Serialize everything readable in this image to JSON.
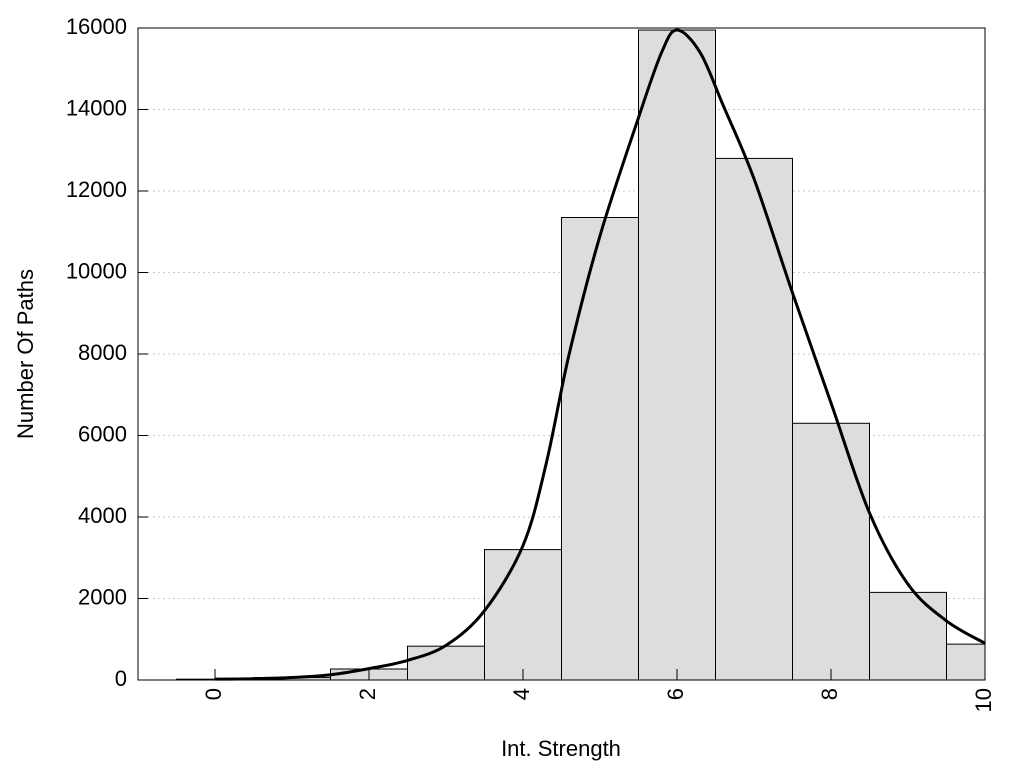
{
  "chart_data": {
    "type": "bar",
    "title": "",
    "xlabel": "Int. Strength",
    "ylabel": "Number Of Paths",
    "xlim": [
      -1,
      10
    ],
    "ylim": [
      0,
      16000
    ],
    "x_ticks": [
      "0",
      "2",
      "4",
      "6",
      "8",
      "10"
    ],
    "y_ticks": [
      "0",
      "2000",
      "4000",
      "6000",
      "8000",
      "10000",
      "12000",
      "14000",
      "16000"
    ],
    "grid": "horizontal dotted",
    "legend": "none",
    "bars": {
      "centers": [
        0,
        1,
        2,
        3,
        4,
        5,
        6,
        7,
        8,
        9,
        10
      ],
      "width": 1,
      "values": [
        20,
        60,
        270,
        830,
        3200,
        11350,
        15950,
        12800,
        6300,
        2150,
        880
      ],
      "fill": "#dddddd",
      "stroke": "#000000"
    },
    "curve": {
      "x": [
        0,
        0.5,
        1,
        1.5,
        2,
        2.5,
        3,
        3.5,
        4,
        4.3,
        4.6,
        5,
        5.5,
        5.8,
        6,
        6.3,
        6.6,
        7,
        7.5,
        8,
        8.5,
        9,
        9.5,
        10
      ],
      "y": [
        20,
        30,
        60,
        130,
        280,
        480,
        850,
        1700,
        3300,
        5300,
        8000,
        10900,
        13800,
        15400,
        15950,
        15400,
        14100,
        12300,
        9500,
        6800,
        4100,
        2350,
        1450,
        900
      ],
      "color": "#000000"
    }
  }
}
